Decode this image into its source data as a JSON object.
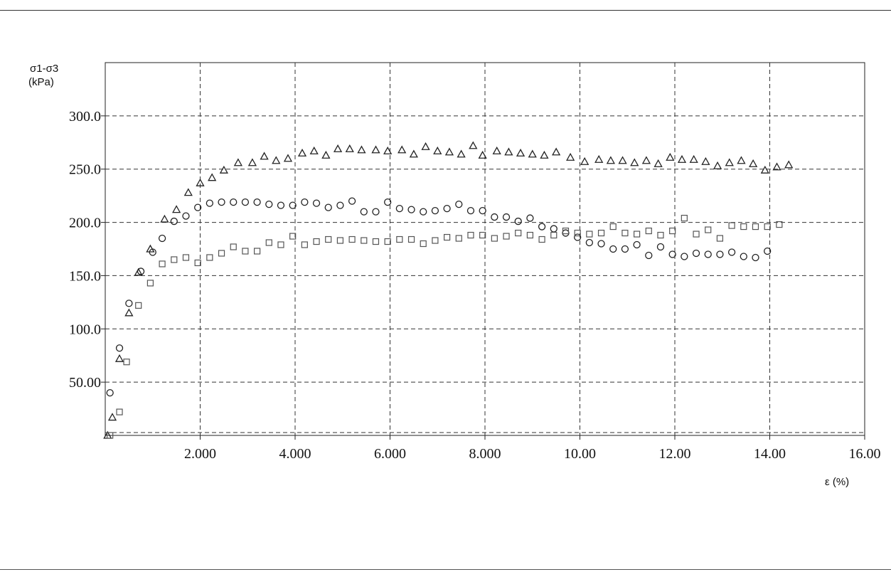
{
  "chart_data": {
    "type": "scatter",
    "ylabel_line1": "σ1-σ3",
    "ylabel_line2": "(kPa)",
    "xlabel": "ε (%)",
    "xlim": [
      0,
      16
    ],
    "ylim": [
      0,
      350
    ],
    "x_ticks": [
      2,
      4,
      6,
      8,
      10,
      12,
      14,
      16
    ],
    "x_tick_labels": [
      "2.000",
      "4.000",
      "6.000",
      "8.000",
      "10.00",
      "12.00",
      "14.00",
      "16.00"
    ],
    "y_ticks": [
      50,
      100,
      150,
      200,
      250,
      300
    ],
    "y_tick_labels": [
      "50.00",
      "100.0",
      "150.0",
      "200.0",
      "250.0",
      "300.0"
    ],
    "grid": true,
    "series": [
      {
        "marker": "triangle",
        "points": [
          [
            0.05,
            0
          ],
          [
            0.15,
            17
          ],
          [
            0.3,
            72
          ],
          [
            0.5,
            115
          ],
          [
            0.7,
            153
          ],
          [
            0.95,
            175
          ],
          [
            1.25,
            203
          ],
          [
            1.5,
            212
          ],
          [
            1.75,
            228
          ],
          [
            2.0,
            237
          ],
          [
            2.25,
            242
          ],
          [
            2.5,
            249
          ],
          [
            2.8,
            256
          ],
          [
            3.1,
            256
          ],
          [
            3.35,
            262
          ],
          [
            3.6,
            258
          ],
          [
            3.85,
            260
          ],
          [
            4.15,
            265
          ],
          [
            4.4,
            267
          ],
          [
            4.65,
            263
          ],
          [
            4.9,
            269
          ],
          [
            5.15,
            269
          ],
          [
            5.4,
            268
          ],
          [
            5.7,
            268
          ],
          [
            5.95,
            267
          ],
          [
            6.25,
            268
          ],
          [
            6.5,
            264
          ],
          [
            6.75,
            271
          ],
          [
            7.0,
            267
          ],
          [
            7.25,
            266
          ],
          [
            7.5,
            264
          ],
          [
            7.75,
            272
          ],
          [
            7.95,
            263
          ],
          [
            8.25,
            267
          ],
          [
            8.5,
            266
          ],
          [
            8.75,
            265
          ],
          [
            9.0,
            264
          ],
          [
            9.25,
            263
          ],
          [
            9.5,
            266
          ],
          [
            9.8,
            261
          ],
          [
            10.1,
            257
          ],
          [
            10.4,
            259
          ],
          [
            10.65,
            258
          ],
          [
            10.9,
            258
          ],
          [
            11.15,
            256
          ],
          [
            11.4,
            258
          ],
          [
            11.65,
            255
          ],
          [
            11.9,
            261
          ],
          [
            12.15,
            259
          ],
          [
            12.4,
            259
          ],
          [
            12.65,
            257
          ],
          [
            12.9,
            253
          ],
          [
            13.15,
            256
          ],
          [
            13.4,
            258
          ],
          [
            13.65,
            255
          ],
          [
            13.9,
            249
          ],
          [
            14.15,
            252
          ],
          [
            14.4,
            254
          ]
        ]
      },
      {
        "marker": "circle",
        "points": [
          [
            0.1,
            40
          ],
          [
            0.3,
            82
          ],
          [
            0.5,
            124
          ],
          [
            0.75,
            154
          ],
          [
            1.0,
            172
          ],
          [
            1.2,
            185
          ],
          [
            1.45,
            201
          ],
          [
            1.7,
            206
          ],
          [
            1.95,
            214
          ],
          [
            2.2,
            218
          ],
          [
            2.45,
            219
          ],
          [
            2.7,
            219
          ],
          [
            2.95,
            219
          ],
          [
            3.2,
            219
          ],
          [
            3.45,
            217
          ],
          [
            3.7,
            216
          ],
          [
            3.95,
            216
          ],
          [
            4.2,
            219
          ],
          [
            4.45,
            218
          ],
          [
            4.7,
            214
          ],
          [
            4.95,
            216
          ],
          [
            5.2,
            220
          ],
          [
            5.45,
            210
          ],
          [
            5.7,
            210
          ],
          [
            5.95,
            219
          ],
          [
            6.2,
            213
          ],
          [
            6.45,
            212
          ],
          [
            6.7,
            210
          ],
          [
            6.95,
            211
          ],
          [
            7.2,
            213
          ],
          [
            7.45,
            217
          ],
          [
            7.7,
            211
          ],
          [
            7.95,
            211
          ],
          [
            8.2,
            205
          ],
          [
            8.45,
            205
          ],
          [
            8.7,
            201
          ],
          [
            8.95,
            204
          ],
          [
            9.2,
            196
          ],
          [
            9.45,
            194
          ],
          [
            9.7,
            190
          ],
          [
            9.95,
            186
          ],
          [
            10.2,
            181
          ],
          [
            10.45,
            180
          ],
          [
            10.7,
            175
          ],
          [
            10.95,
            175
          ],
          [
            11.2,
            179
          ],
          [
            11.45,
            169
          ],
          [
            11.7,
            177
          ],
          [
            11.95,
            170
          ],
          [
            12.2,
            168
          ],
          [
            12.45,
            171
          ],
          [
            12.7,
            170
          ],
          [
            12.95,
            170
          ],
          [
            13.2,
            172
          ],
          [
            13.45,
            168
          ],
          [
            13.7,
            167
          ],
          [
            13.95,
            173
          ]
        ]
      },
      {
        "marker": "square",
        "points": [
          [
            0.1,
            0
          ],
          [
            0.3,
            22
          ],
          [
            0.45,
            69
          ],
          [
            0.7,
            122
          ],
          [
            0.95,
            143
          ],
          [
            1.2,
            161
          ],
          [
            1.45,
            165
          ],
          [
            1.7,
            167
          ],
          [
            1.95,
            162
          ],
          [
            2.2,
            167
          ],
          [
            2.45,
            171
          ],
          [
            2.7,
            177
          ],
          [
            2.95,
            173
          ],
          [
            3.2,
            173
          ],
          [
            3.45,
            181
          ],
          [
            3.7,
            179
          ],
          [
            3.95,
            187
          ],
          [
            4.2,
            179
          ],
          [
            4.45,
            182
          ],
          [
            4.7,
            184
          ],
          [
            4.95,
            183
          ],
          [
            5.2,
            184
          ],
          [
            5.45,
            183
          ],
          [
            5.7,
            182
          ],
          [
            5.95,
            182
          ],
          [
            6.2,
            184
          ],
          [
            6.45,
            184
          ],
          [
            6.7,
            180
          ],
          [
            6.95,
            183
          ],
          [
            7.2,
            186
          ],
          [
            7.45,
            185
          ],
          [
            7.7,
            188
          ],
          [
            7.95,
            188
          ],
          [
            8.2,
            185
          ],
          [
            8.45,
            187
          ],
          [
            8.7,
            190
          ],
          [
            8.95,
            188
          ],
          [
            9.2,
            184
          ],
          [
            9.45,
            188
          ],
          [
            9.7,
            192
          ],
          [
            9.95,
            190
          ],
          [
            10.2,
            189
          ],
          [
            10.45,
            190
          ],
          [
            10.7,
            196
          ],
          [
            10.95,
            190
          ],
          [
            11.2,
            189
          ],
          [
            11.45,
            192
          ],
          [
            11.7,
            188
          ],
          [
            11.95,
            192
          ],
          [
            12.2,
            204
          ],
          [
            12.45,
            189
          ],
          [
            12.7,
            193
          ],
          [
            12.95,
            185
          ],
          [
            13.2,
            197
          ],
          [
            13.45,
            196
          ],
          [
            13.7,
            196
          ],
          [
            13.95,
            196
          ],
          [
            14.2,
            198
          ]
        ]
      }
    ]
  }
}
